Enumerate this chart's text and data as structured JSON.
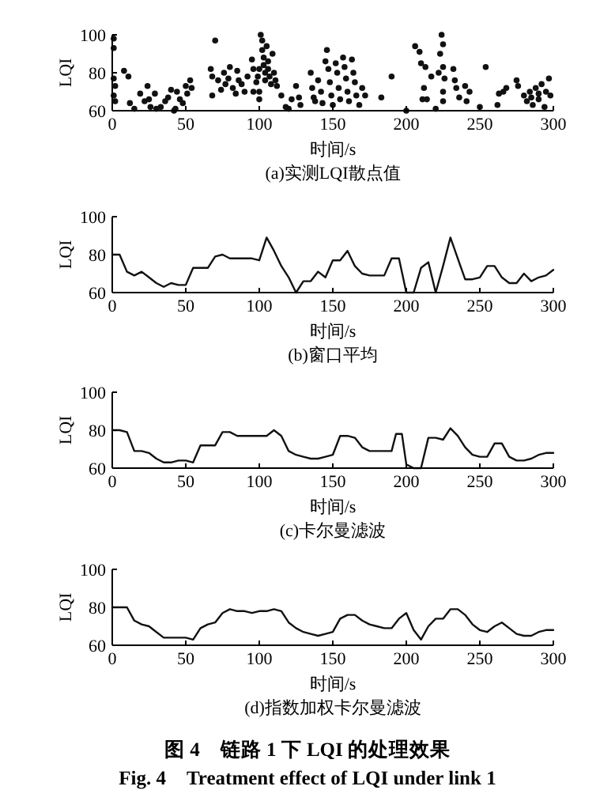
{
  "chart_data": [
    {
      "type": "scatter",
      "title": "(a)实测LQI散点值",
      "xlabel": "时间/s",
      "ylabel": "LQI",
      "xlim": [
        0,
        300
      ],
      "ylim": [
        60,
        100
      ],
      "xticks": [
        0,
        50,
        100,
        150,
        200,
        250,
        300
      ],
      "yticks": [
        60,
        80,
        100
      ],
      "grid": false,
      "marker": "circle",
      "series": [
        {
          "color": "#111111",
          "x": [
            1,
            1,
            1,
            2,
            1,
            2,
            8,
            11,
            12,
            15,
            19,
            22,
            24,
            25,
            26,
            29,
            30,
            33,
            36,
            38,
            40,
            42,
            43,
            44,
            46,
            48,
            50,
            51,
            53,
            54,
            67,
            68,
            68,
            70,
            72,
            74,
            76,
            77,
            79,
            80,
            82,
            84,
            85,
            86,
            88,
            90,
            92,
            95,
            96,
            96,
            98,
            100,
            100,
            101,
            102,
            102,
            103,
            103,
            104,
            104,
            105,
            106,
            106,
            107,
            108,
            109,
            110,
            111,
            112,
            100,
            99,
            115,
            118,
            120,
            122,
            125,
            127,
            128,
            135,
            136,
            137,
            138,
            140,
            142,
            143,
            145,
            146,
            147,
            148,
            149,
            150,
            152,
            153,
            154,
            155,
            157,
            158,
            159,
            160,
            161,
            163,
            164,
            165,
            166,
            168,
            170,
            172,
            183,
            190,
            200,
            206,
            209,
            210,
            211,
            212,
            213,
            214,
            217,
            220,
            222,
            223,
            224,
            225,
            225,
            226,
            225,
            225,
            232,
            233,
            234,
            236,
            240,
            241,
            243,
            254,
            250,
            262,
            263,
            266,
            268,
            275,
            276,
            280,
            282,
            284,
            286,
            288,
            290,
            292,
            294,
            295,
            297,
            298,
            285,
            290
          ],
          "values": [
            98,
            93,
            77,
            73,
            68,
            65,
            81,
            78,
            64,
            61,
            69,
            65,
            73,
            66,
            62,
            69,
            61,
            62,
            65,
            67,
            71,
            60,
            61,
            70,
            66,
            64,
            73,
            69,
            76,
            72,
            82,
            78,
            68,
            97,
            76,
            71,
            80,
            74,
            77,
            83,
            72,
            69,
            81,
            76,
            74,
            70,
            78,
            87,
            82,
            70,
            75,
            66,
            70,
            100,
            97,
            92,
            88,
            84,
            80,
            76,
            94,
            86,
            82,
            78,
            74,
            90,
            80,
            76,
            73,
            82,
            78,
            68,
            62,
            61,
            66,
            73,
            67,
            63,
            80,
            72,
            67,
            65,
            76,
            70,
            64,
            86,
            92,
            82,
            75,
            68,
            63,
            85,
            80,
            72,
            66,
            88,
            83,
            77,
            70,
            65,
            87,
            80,
            75,
            68,
            63,
            72,
            68,
            67,
            78,
            60,
            94,
            91,
            85,
            66,
            72,
            83,
            66,
            78,
            61,
            80,
            90,
            100,
            95,
            83,
            77,
            70,
            65,
            82,
            76,
            72,
            67,
            73,
            65,
            70,
            83,
            62,
            63,
            69,
            70,
            72,
            76,
            73,
            68,
            65,
            70,
            63,
            72,
            66,
            74,
            62,
            70,
            77,
            68,
            67,
            69
          ]
        }
      ]
    },
    {
      "type": "line",
      "title": "(b)窗口平均",
      "xlabel": "时间/s",
      "ylabel": "LQI",
      "xlim": [
        0,
        300
      ],
      "ylim": [
        60,
        100
      ],
      "xticks": [
        0,
        50,
        100,
        150,
        200,
        250,
        300
      ],
      "yticks": [
        60,
        80,
        100
      ],
      "grid": false,
      "marker": "none",
      "line_style": "solid",
      "series": [
        {
          "color": "#111111",
          "x": [
            0,
            5,
            10,
            15,
            20,
            25,
            30,
            35,
            40,
            45,
            50,
            55,
            60,
            65,
            70,
            75,
            80,
            85,
            90,
            95,
            100,
            105,
            110,
            115,
            120,
            125,
            130,
            135,
            140,
            145,
            150,
            155,
            160,
            165,
            170,
            175,
            180,
            185,
            190,
            195,
            200,
            205,
            210,
            215,
            220,
            225,
            230,
            235,
            240,
            245,
            250,
            255,
            260,
            265,
            270,
            275,
            280,
            285,
            290,
            295,
            300
          ],
          "values": [
            80,
            80,
            71,
            69,
            71,
            68,
            65,
            63,
            65,
            64,
            64,
            73,
            73,
            73,
            79,
            80,
            78,
            78,
            78,
            78,
            77,
            89,
            82,
            74,
            68,
            60,
            66,
            66,
            71,
            68,
            77,
            77,
            82,
            74,
            70,
            69,
            69,
            69,
            78,
            78,
            60,
            60,
            73,
            76,
            60,
            74,
            89,
            78,
            67,
            67,
            68,
            74,
            74,
            68,
            65,
            65,
            70,
            66,
            68,
            69,
            72
          ]
        }
      ]
    },
    {
      "type": "line",
      "title": "(c)卡尔曼滤波",
      "xlabel": "时间/s",
      "ylabel": "LQI",
      "xlim": [
        0,
        300
      ],
      "ylim": [
        60,
        100
      ],
      "xticks": [
        0,
        50,
        100,
        150,
        200,
        250,
        300
      ],
      "yticks": [
        60,
        80,
        100
      ],
      "grid": false,
      "marker": "none",
      "line_style": "solid",
      "series": [
        {
          "color": "#111111",
          "x": [
            0,
            5,
            10,
            15,
            20,
            25,
            30,
            35,
            40,
            45,
            50,
            55,
            60,
            65,
            70,
            75,
            80,
            85,
            90,
            95,
            100,
            105,
            110,
            115,
            120,
            125,
            130,
            135,
            140,
            145,
            150,
            155,
            160,
            165,
            170,
            175,
            180,
            185,
            190,
            193,
            197,
            200,
            205,
            210,
            215,
            220,
            225,
            230,
            235,
            240,
            245,
            250,
            255,
            260,
            265,
            270,
            275,
            280,
            285,
            290,
            295,
            300
          ],
          "values": [
            80,
            80,
            79,
            69,
            69,
            68,
            65,
            63,
            63,
            64,
            64,
            63,
            72,
            72,
            72,
            79,
            79,
            77,
            77,
            77,
            77,
            77,
            80,
            77,
            69,
            67,
            66,
            65,
            65,
            66,
            67,
            77,
            77,
            76,
            71,
            69,
            69,
            69,
            69,
            78,
            78,
            62,
            60,
            60,
            76,
            76,
            75,
            81,
            77,
            71,
            67,
            66,
            66,
            73,
            73,
            66,
            64,
            64,
            65,
            67,
            68,
            68
          ]
        }
      ]
    },
    {
      "type": "line",
      "title": "(d)指数加权卡尔曼滤波",
      "xlabel": "时间/s",
      "ylabel": "LQI",
      "xlim": [
        0,
        300
      ],
      "ylim": [
        60,
        100
      ],
      "xticks": [
        0,
        50,
        100,
        150,
        200,
        250,
        300
      ],
      "yticks": [
        60,
        80,
        100
      ],
      "grid": false,
      "marker": "none",
      "line_style": "solid",
      "annotations": [
        "图 4　链路 1 下 LQI 的处理效果",
        "Fig. 4　Treatment effect of LQI under link 1"
      ],
      "series": [
        {
          "color": "#111111",
          "x": [
            0,
            5,
            10,
            15,
            20,
            25,
            30,
            35,
            40,
            45,
            50,
            55,
            60,
            65,
            70,
            75,
            80,
            85,
            90,
            95,
            100,
            105,
            110,
            115,
            120,
            125,
            130,
            135,
            140,
            145,
            150,
            155,
            160,
            165,
            170,
            175,
            180,
            185,
            190,
            195,
            200,
            205,
            210,
            215,
            220,
            225,
            230,
            235,
            240,
            245,
            250,
            255,
            260,
            265,
            270,
            275,
            280,
            285,
            290,
            295,
            300
          ],
          "values": [
            80,
            80,
            80,
            73,
            71,
            70,
            67,
            64,
            64,
            64,
            64,
            63,
            69,
            71,
            72,
            77,
            79,
            78,
            78,
            77,
            78,
            78,
            79,
            78,
            72,
            69,
            67,
            66,
            65,
            66,
            67,
            74,
            76,
            76,
            73,
            71,
            70,
            69,
            69,
            74,
            77,
            68,
            63,
            70,
            74,
            74,
            79,
            79,
            76,
            71,
            68,
            67,
            70,
            72,
            69,
            66,
            65,
            65,
            67,
            68,
            68
          ]
        }
      ]
    }
  ]
}
